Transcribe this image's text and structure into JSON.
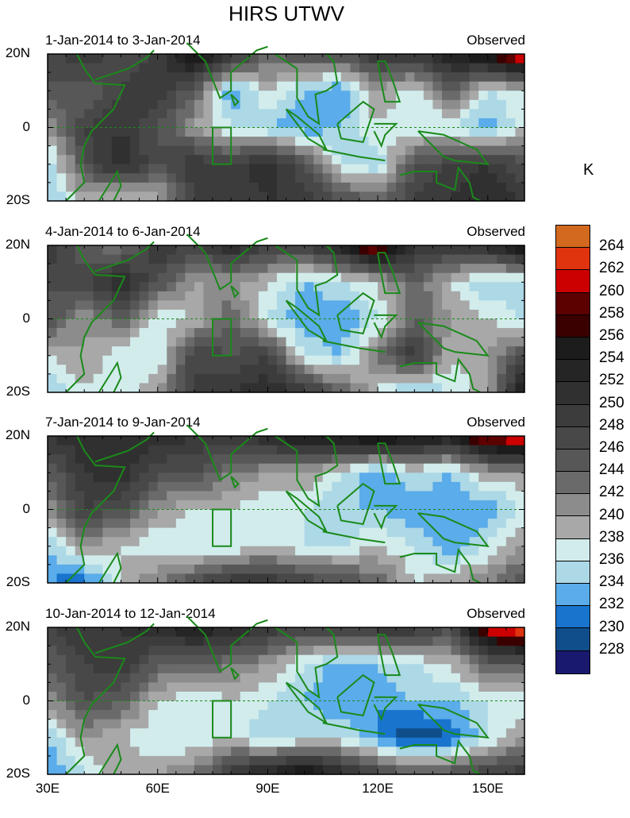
{
  "title": "HIRS UTWV",
  "chart_data": {
    "type": "heatmap",
    "title": "HIRS UTWV",
    "units": "K",
    "lon": [
      30,
      40,
      50,
      60,
      70,
      80,
      90,
      100,
      110,
      120,
      130,
      140,
      150,
      160
    ],
    "lat": [
      20,
      10,
      0,
      -10,
      -20
    ],
    "x_ticks": [
      "30E",
      "60E",
      "90E",
      "120E",
      "150E"
    ],
    "y_ticks": [
      "20N",
      "0",
      "20S"
    ],
    "region_box": {
      "lon": [
        75,
        80
      ],
      "lat": [
        -10,
        0
      ]
    },
    "colorbar": {
      "levels": [
        264,
        262,
        260,
        258,
        256,
        254,
        252,
        250,
        248,
        246,
        244,
        242,
        240,
        238,
        236,
        234,
        232,
        230,
        228
      ],
      "colors": [
        "#d2691e",
        "#e0340f",
        "#cc0000",
        "#5c0000",
        "#3a0000",
        "#1c1c1c",
        "#252525",
        "#303030",
        "#3c3c3c",
        "#484848",
        "#575757",
        "#6a6a6a",
        "#8c8c8c",
        "#a8a8a8",
        "#d2ecec",
        "#add8e6",
        "#5aacea",
        "#1874cd",
        "#104e8b",
        "#191970"
      ]
    },
    "panels": [
      {
        "period": "1-Jan-2014 to 3-Jan-2014",
        "label": "Observed",
        "values": [
          [
            246,
            250,
            246,
            248,
            258,
            250,
            244,
            246,
            246,
            250,
            250,
            254,
            258,
            264
          ],
          [
            246,
            244,
            248,
            250,
            244,
            232,
            238,
            234,
            232,
            240,
            236,
            244,
            236,
            238
          ],
          [
            240,
            248,
            250,
            246,
            240,
            236,
            234,
            232,
            234,
            238,
            236,
            236,
            232,
            238
          ],
          [
            234,
            246,
            252,
            246,
            250,
            248,
            252,
            246,
            236,
            234,
            246,
            248,
            250,
            246
          ],
          [
            234,
            238,
            236,
            238,
            248,
            248,
            250,
            250,
            246,
            244,
            248,
            250,
            252,
            250
          ]
        ]
      },
      {
        "period": "4-Jan-2014 to 6-Jan-2014",
        "label": "Observed",
        "values": [
          [
            250,
            244,
            242,
            250,
            248,
            252,
            248,
            248,
            254,
            262,
            250,
            250,
            252,
            258
          ],
          [
            246,
            248,
            252,
            246,
            240,
            240,
            238,
            234,
            236,
            238,
            244,
            238,
            234,
            234
          ],
          [
            246,
            240,
            244,
            236,
            238,
            244,
            236,
            232,
            232,
            236,
            244,
            240,
            238,
            236
          ],
          [
            238,
            240,
            236,
            236,
            248,
            246,
            248,
            236,
            234,
            242,
            250,
            238,
            240,
            246
          ],
          [
            234,
            238,
            236,
            240,
            248,
            250,
            252,
            250,
            244,
            238,
            232,
            236,
            240,
            256
          ]
        ]
      },
      {
        "period": "7-Jan-2014 to 9-Jan-2014",
        "label": "Observed",
        "values": [
          [
            250,
            252,
            250,
            252,
            250,
            250,
            252,
            256,
            256,
            258,
            256,
            254,
            262,
            264
          ],
          [
            244,
            250,
            252,
            246,
            246,
            242,
            240,
            240,
            236,
            232,
            236,
            234,
            240,
            240
          ],
          [
            240,
            248,
            246,
            240,
            238,
            238,
            236,
            236,
            234,
            234,
            232,
            232,
            232,
            236
          ],
          [
            234,
            240,
            238,
            236,
            236,
            236,
            238,
            236,
            236,
            238,
            236,
            232,
            236,
            240
          ],
          [
            232,
            230,
            238,
            242,
            246,
            250,
            250,
            248,
            246,
            244,
            238,
            240,
            242,
            246
          ]
        ]
      },
      {
        "period": "10-Jan-2014 to 12-Jan-2014",
        "label": "Observed",
        "values": [
          [
            248,
            250,
            250,
            252,
            254,
            252,
            250,
            248,
            248,
            250,
            250,
            246,
            262,
            266
          ],
          [
            244,
            248,
            250,
            244,
            244,
            242,
            240,
            236,
            232,
            234,
            236,
            238,
            244,
            244
          ],
          [
            240,
            246,
            244,
            238,
            236,
            238,
            236,
            234,
            232,
            232,
            234,
            234,
            236,
            236
          ],
          [
            234,
            240,
            238,
            236,
            236,
            238,
            234,
            236,
            236,
            232,
            228,
            230,
            236,
            240
          ],
          [
            232,
            236,
            240,
            240,
            242,
            250,
            254,
            258,
            252,
            248,
            244,
            246,
            248,
            250
          ]
        ]
      }
    ]
  }
}
